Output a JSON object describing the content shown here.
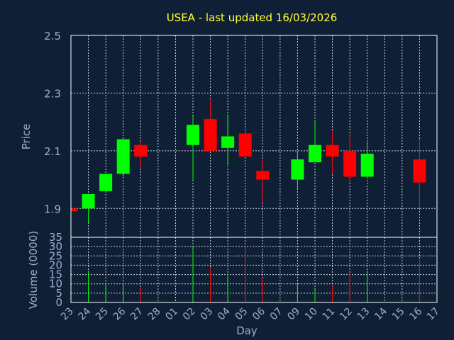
{
  "chart_data": {
    "type": "candlestick",
    "title": "USEA - last updated 16/03/2026",
    "xlabel": "Day",
    "x_categories": [
      "23",
      "24",
      "25",
      "26",
      "27",
      "28",
      "01",
      "02",
      "03",
      "04",
      "05",
      "06",
      "07",
      "09",
      "10",
      "11",
      "12",
      "13",
      "14",
      "15",
      "16",
      "17"
    ],
    "price_panel": {
      "ylabel": "Price",
      "ylim": [
        1.8,
        2.5
      ],
      "yticks": [
        1.9,
        2.1,
        2.3,
        2.5
      ],
      "grid": true,
      "candles": [
        {
          "day": "23",
          "open": 1.9,
          "close": 1.89,
          "high": 1.9,
          "low": 1.89,
          "color": "red"
        },
        {
          "day": "24",
          "open": 1.9,
          "close": 1.95,
          "high": 1.95,
          "low": 1.85,
          "color": "green"
        },
        {
          "day": "25",
          "open": 1.96,
          "close": 2.02,
          "high": 2.02,
          "low": 1.96,
          "color": "green"
        },
        {
          "day": "26",
          "open": 2.02,
          "close": 2.14,
          "high": 2.14,
          "low": 2.01,
          "color": "green"
        },
        {
          "day": "27",
          "open": 2.12,
          "close": 2.08,
          "high": 2.13,
          "low": 2.04,
          "color": "red"
        },
        {
          "day": "02",
          "open": 2.12,
          "close": 2.19,
          "high": 2.22,
          "low": 2.0,
          "color": "green"
        },
        {
          "day": "03",
          "open": 2.21,
          "close": 2.1,
          "high": 2.28,
          "low": 2.1,
          "color": "red"
        },
        {
          "day": "04",
          "open": 2.11,
          "close": 2.15,
          "high": 2.22,
          "low": 2.05,
          "color": "green"
        },
        {
          "day": "05",
          "open": 2.16,
          "close": 2.08,
          "high": 2.17,
          "low": 2.08,
          "color": "red"
        },
        {
          "day": "06",
          "open": 2.03,
          "close": 2.0,
          "high": 2.07,
          "low": 1.92,
          "color": "red"
        },
        {
          "day": "09",
          "open": 2.0,
          "close": 2.07,
          "high": 2.1,
          "low": 1.97,
          "color": "green"
        },
        {
          "day": "10",
          "open": 2.06,
          "close": 2.12,
          "high": 2.2,
          "low": 2.06,
          "color": "green"
        },
        {
          "day": "11",
          "open": 2.12,
          "close": 2.08,
          "high": 2.17,
          "low": 2.02,
          "color": "red"
        },
        {
          "day": "12",
          "open": 2.1,
          "close": 2.01,
          "high": 2.16,
          "low": 1.99,
          "color": "red"
        },
        {
          "day": "13",
          "open": 2.01,
          "close": 2.09,
          "high": 2.13,
          "low": 2.01,
          "color": "green"
        },
        {
          "day": "16",
          "open": 2.07,
          "close": 1.99,
          "high": 2.14,
          "low": 1.9,
          "color": "red"
        }
      ]
    },
    "volume_panel": {
      "ylabel": "Volume (0000)",
      "ylim": [
        0,
        35
      ],
      "yticks": [
        0,
        5,
        10,
        15,
        20,
        25,
        30,
        35
      ],
      "grid": true,
      "bars": [
        {
          "day": "24",
          "value": 17,
          "color": "green"
        },
        {
          "day": "25",
          "value": 10,
          "color": "green"
        },
        {
          "day": "26",
          "value": 10,
          "color": "green"
        },
        {
          "day": "27",
          "value": 8,
          "color": "red"
        },
        {
          "day": "02",
          "value": 30,
          "color": "green"
        },
        {
          "day": "03",
          "value": 19,
          "color": "red"
        },
        {
          "day": "04",
          "value": 14,
          "color": "green"
        },
        {
          "day": "05",
          "value": 30,
          "color": "red"
        },
        {
          "day": "06",
          "value": 13,
          "color": "red"
        },
        {
          "day": "09",
          "value": 10,
          "color": "green"
        },
        {
          "day": "10",
          "value": 7,
          "color": "green"
        },
        {
          "day": "11",
          "value": 9,
          "color": "red"
        },
        {
          "day": "12",
          "value": 16,
          "color": "red"
        },
        {
          "day": "13",
          "value": 17,
          "color": "green"
        },
        {
          "day": "16",
          "value": 23,
          "color": "red"
        }
      ]
    },
    "colors": {
      "background": "#0f2036",
      "up": "#00ff00",
      "down": "#ff0000",
      "grid": "#c8d0dc",
      "axis_text": "#9aaecd",
      "title": "#ffff33"
    }
  }
}
